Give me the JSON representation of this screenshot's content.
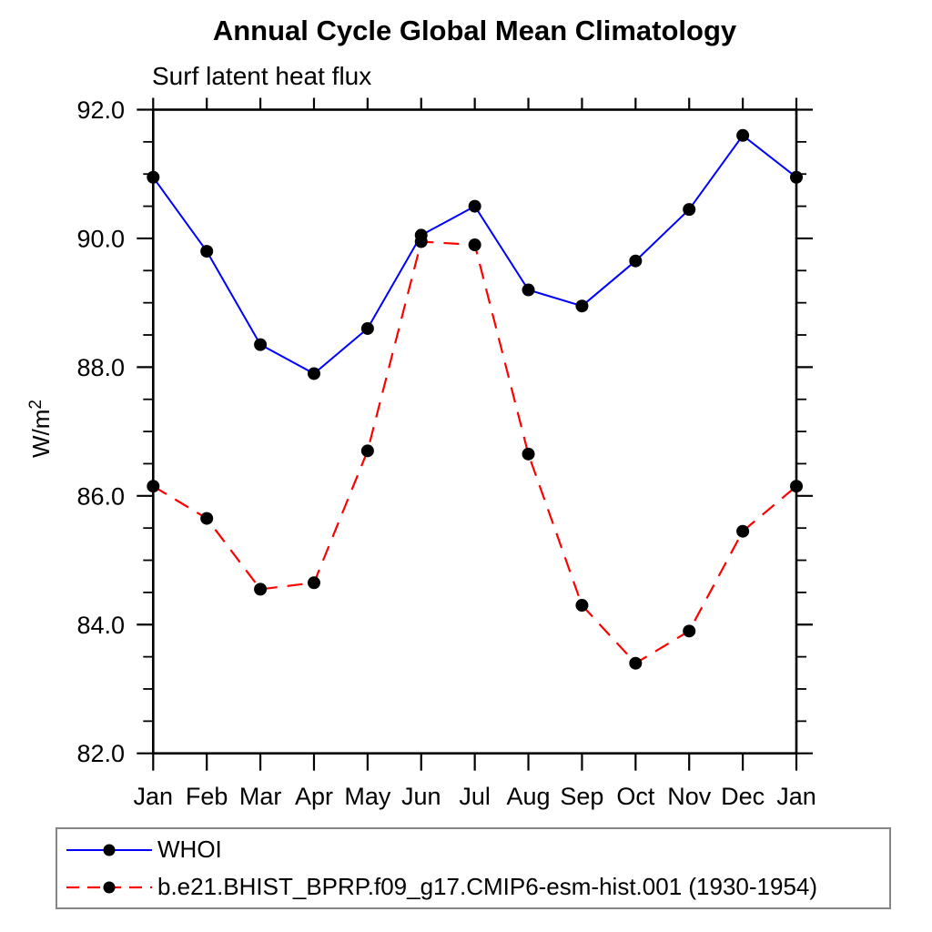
{
  "chart_data": {
    "type": "line",
    "title": "Annual Cycle Global Mean Climatology",
    "subtitle": "Surf latent heat flux",
    "ylabel": "W/m²",
    "ylabel_base": "W/m",
    "ylabel_exponent": "2",
    "xlabel": "",
    "categories": [
      "Jan",
      "Feb",
      "Mar",
      "Apr",
      "May",
      "Jun",
      "Jul",
      "Aug",
      "Sep",
      "Oct",
      "Nov",
      "Dec",
      "Jan"
    ],
    "ylim": [
      82.0,
      92.0
    ],
    "y_ticks": {
      "values": [
        82.0,
        84.0,
        86.0,
        88.0,
        90.0,
        92.0
      ],
      "labels": [
        "82.0",
        "84.0",
        "86.0",
        "88.0",
        "90.0",
        "92.0"
      ],
      "minor_step": 0.5
    },
    "grid": "off",
    "legend_position": "bottom-left-boxed",
    "marker_color": "#000000",
    "axis_color": "#000000",
    "legend_border_color": "#858585",
    "series": [
      {
        "name": "WHOI",
        "color": "#0000ff",
        "line_style": "solid",
        "marker": "circle",
        "values": [
          90.95,
          89.8,
          88.35,
          87.9,
          88.6,
          90.05,
          90.5,
          89.2,
          88.95,
          89.65,
          90.45,
          91.6,
          90.95
        ]
      },
      {
        "name": "b.e21.BHIST_BPRP.f09_g17.CMIP6-esm-hist.001 (1930-1954)",
        "color": "#ff0000",
        "line_style": "dashed",
        "marker": "circle",
        "values": [
          86.15,
          85.65,
          84.55,
          84.65,
          86.7,
          89.95,
          89.9,
          86.65,
          84.3,
          83.4,
          83.9,
          85.45,
          86.15
        ]
      }
    ]
  }
}
